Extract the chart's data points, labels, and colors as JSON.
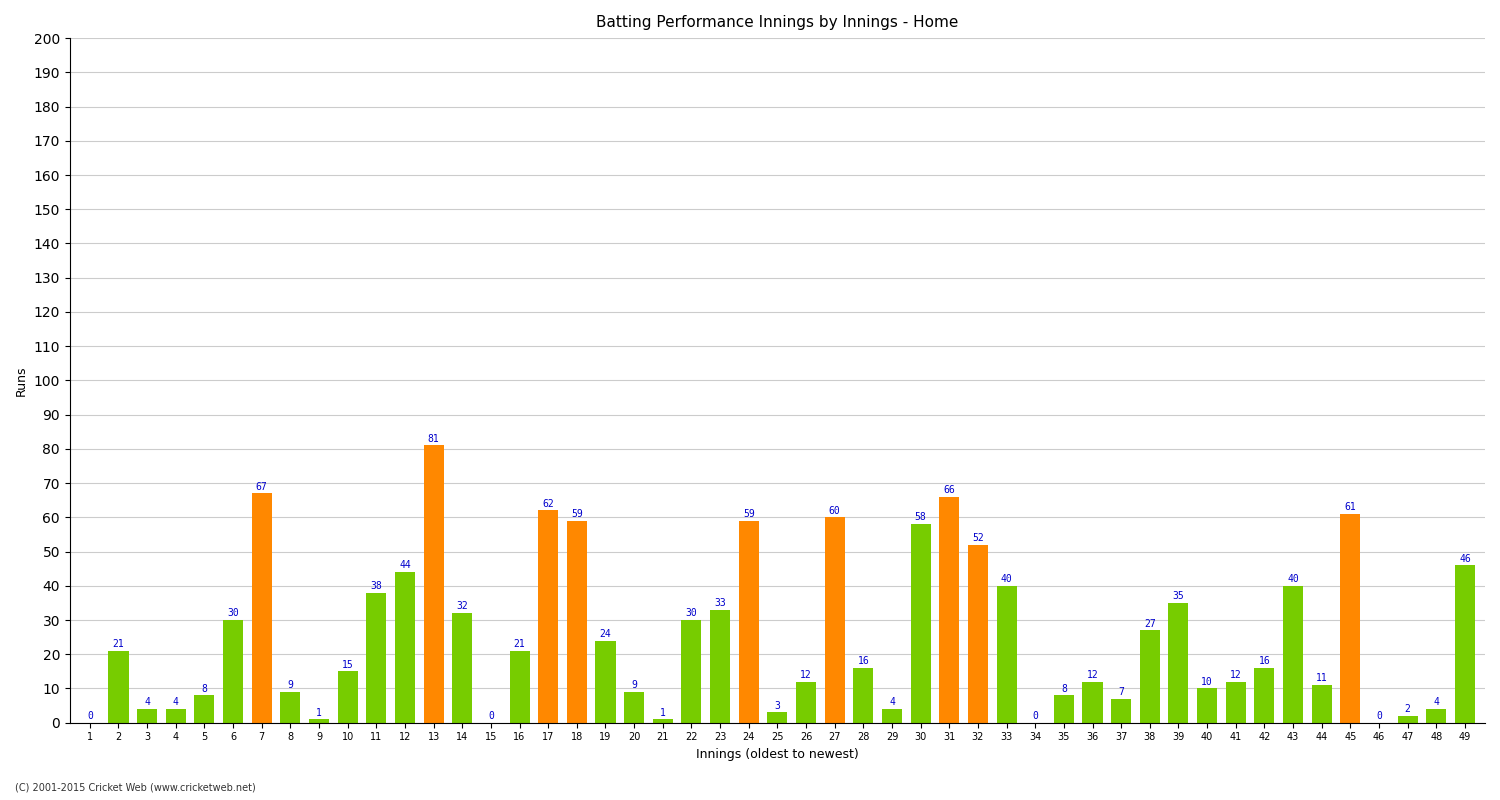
{
  "title": "Batting Performance Innings by Innings - Home",
  "xlabel": "Innings (oldest to newest)",
  "ylabel": "Runs",
  "ylim": [
    0,
    200
  ],
  "yticks": [
    0,
    10,
    20,
    30,
    40,
    50,
    60,
    70,
    80,
    90,
    100,
    110,
    120,
    130,
    140,
    150,
    160,
    170,
    180,
    190,
    200
  ],
  "footnote": "(C) 2001-2015 Cricket Web (www.cricketweb.net)",
  "innings": [
    1,
    2,
    3,
    4,
    5,
    6,
    7,
    8,
    9,
    10,
    11,
    12,
    13,
    14,
    15,
    16,
    17,
    18,
    19,
    20,
    21,
    22,
    23,
    24,
    25,
    26,
    27,
    28,
    29,
    30,
    31,
    32,
    33,
    34,
    35,
    36,
    37,
    38,
    39,
    40,
    41,
    42,
    43,
    44,
    45,
    46,
    47,
    48,
    49
  ],
  "values": [
    0,
    21,
    4,
    4,
    8,
    30,
    67,
    9,
    1,
    15,
    38,
    44,
    81,
    32,
    0,
    21,
    62,
    59,
    24,
    9,
    1,
    30,
    33,
    59,
    3,
    12,
    60,
    16,
    4,
    58,
    66,
    52,
    40,
    0,
    8,
    12,
    7,
    27,
    35,
    10,
    12,
    16,
    40,
    11,
    61,
    0,
    2,
    4,
    46
  ],
  "colors": [
    "#77cc00",
    "#77cc00",
    "#77cc00",
    "#77cc00",
    "#77cc00",
    "#77cc00",
    "#ff8800",
    "#77cc00",
    "#77cc00",
    "#77cc00",
    "#77cc00",
    "#77cc00",
    "#ff8800",
    "#77cc00",
    "#77cc00",
    "#77cc00",
    "#ff8800",
    "#ff8800",
    "#77cc00",
    "#77cc00",
    "#77cc00",
    "#77cc00",
    "#77cc00",
    "#ff8800",
    "#77cc00",
    "#77cc00",
    "#ff8800",
    "#77cc00",
    "#77cc00",
    "#77cc00",
    "#ff8800",
    "#ff8800",
    "#77cc00",
    "#77cc00",
    "#77cc00",
    "#77cc00",
    "#77cc00",
    "#77cc00",
    "#77cc00",
    "#77cc00",
    "#77cc00",
    "#77cc00",
    "#77cc00",
    "#77cc00",
    "#ff8800",
    "#77cc00",
    "#77cc00",
    "#77cc00",
    "#77cc00"
  ],
  "bar_color_green": "#77cc00",
  "bar_color_orange": "#ff8800",
  "label_color": "#0000cc",
  "bg_color": "#ffffff",
  "grid_color": "#cccccc",
  "title_color": "#000000",
  "axis_label_color": "#000000"
}
